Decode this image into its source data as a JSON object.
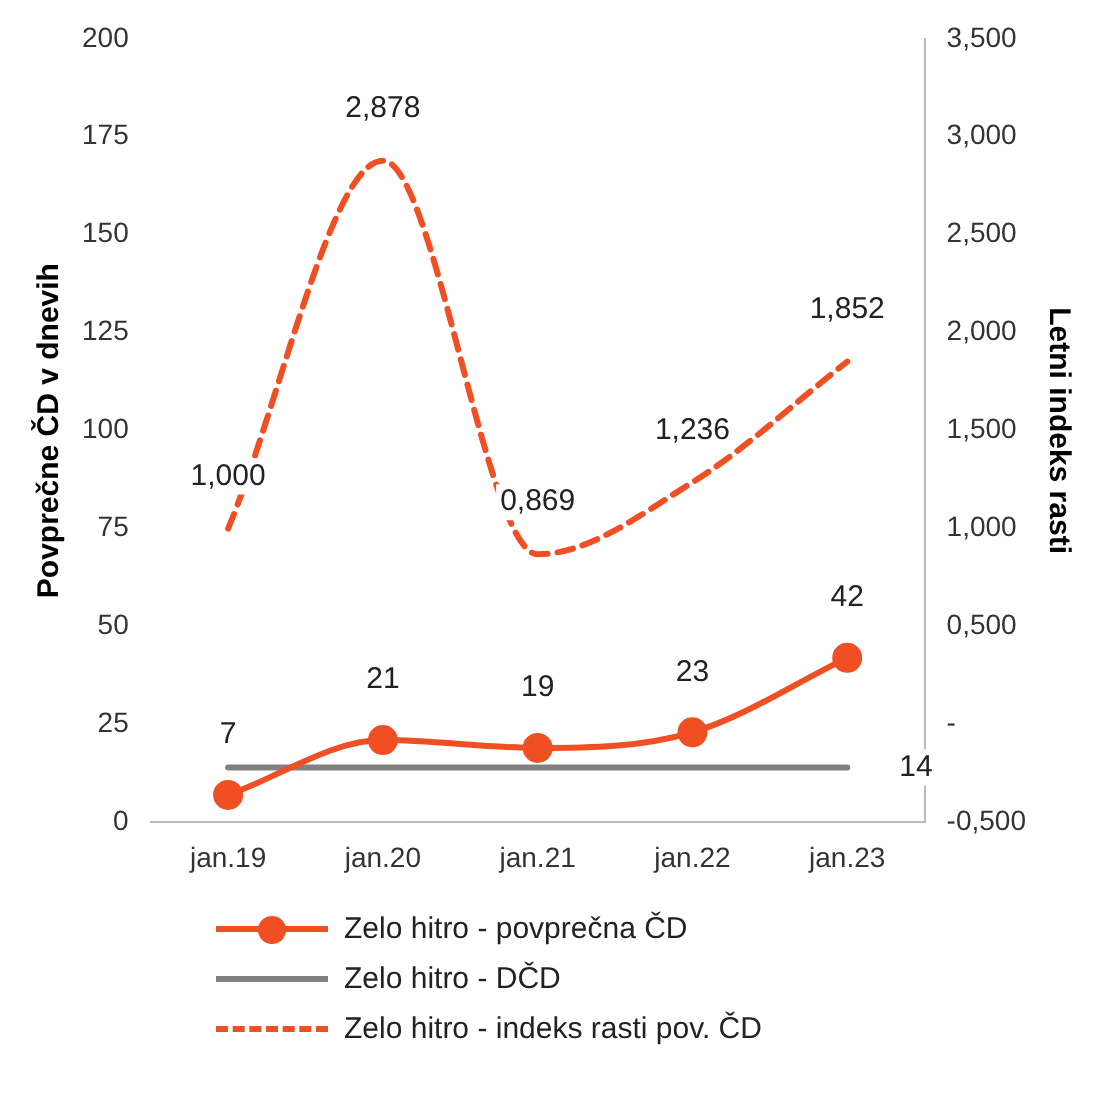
{
  "chart_data": {
    "type": "line",
    "categories": [
      "jan.19",
      "jan.20",
      "jan.21",
      "jan.22",
      "jan.23"
    ],
    "ylabel": "Povprečne ČD v dnevih",
    "y2label": "Letni indeks rasti",
    "ylim": [
      0,
      200
    ],
    "yticks": [
      0,
      25,
      50,
      75,
      100,
      125,
      150,
      175,
      200
    ],
    "y2lim": [
      -0.5,
      3.5
    ],
    "y2ticks": [
      {
        "value": -0.5,
        "label": "-0,500"
      },
      {
        "value": 0,
        "label": "-"
      },
      {
        "value": 0.5,
        "label": "0,500"
      },
      {
        "value": 1,
        "label": "1,000"
      },
      {
        "value": 1.5,
        "label": "1,500"
      },
      {
        "value": 2,
        "label": "2,000"
      },
      {
        "value": 2.5,
        "label": "2,500"
      },
      {
        "value": 3,
        "label": "3,000"
      },
      {
        "value": 3.5,
        "label": "3,500"
      }
    ],
    "grid": false,
    "legend": "bottom",
    "series": [
      {
        "name": "Zelo hitro - povprečna ČD",
        "color": "#f04e23",
        "values": [
          7,
          21,
          19,
          23,
          42
        ],
        "value_labels": [
          "7",
          "21",
          "19",
          "23",
          "42"
        ],
        "marker": "circle",
        "line_style": "solid"
      },
      {
        "name": "Zelo hitro - DČD",
        "color": "#808080",
        "values": [
          14,
          14,
          14,
          14,
          14
        ],
        "value_labels": [
          null,
          null,
          null,
          null,
          "14"
        ],
        "marker": "none",
        "line_style": "solid"
      },
      {
        "name": "Zelo hitro - indeks rasti pov. ČD",
        "color": "#f04e23",
        "values": [
          1.0,
          2.878,
          0.869,
          1.236,
          1.852
        ],
        "value_labels": [
          "1,000",
          "2,878",
          "0,869",
          "1,236",
          "1,852"
        ],
        "marker": "none",
        "line_style": "dashed",
        "axis": "y2"
      }
    ]
  }
}
